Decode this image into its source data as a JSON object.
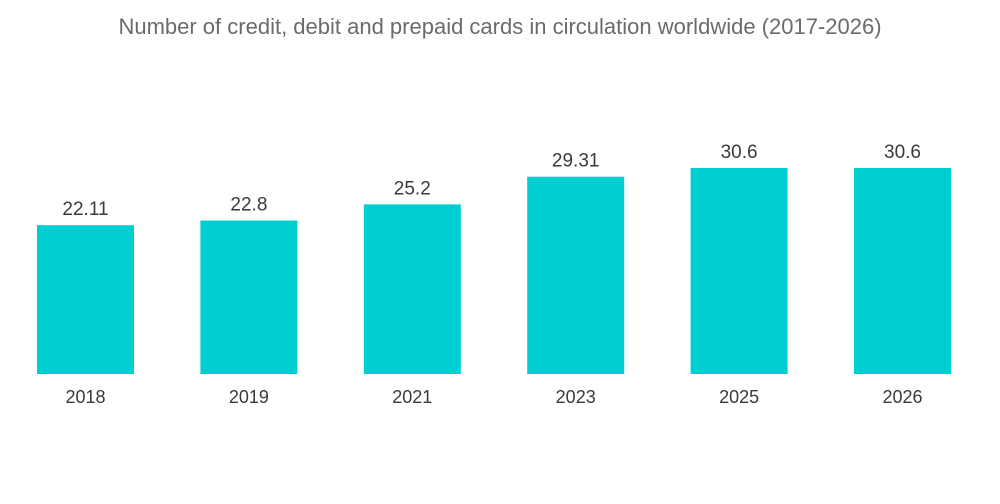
{
  "chart_data": {
    "type": "bar",
    "title": "Number of credit, debit and prepaid cards in circulation worldwide (2017-2026)",
    "categories": [
      "2018",
      "2019",
      "2021",
      "2023",
      "2025",
      "2026"
    ],
    "values": [
      22.11,
      22.8,
      25.2,
      29.31,
      30.6,
      30.6
    ],
    "value_labels": [
      "22.11",
      "22.8",
      "25.2",
      "29.31",
      "30.6",
      "30.6"
    ],
    "xlabel": "",
    "ylabel": "",
    "ylim": [
      0,
      30.6
    ],
    "grid": false,
    "legend": "none",
    "bar_color": "#00cfd1"
  }
}
